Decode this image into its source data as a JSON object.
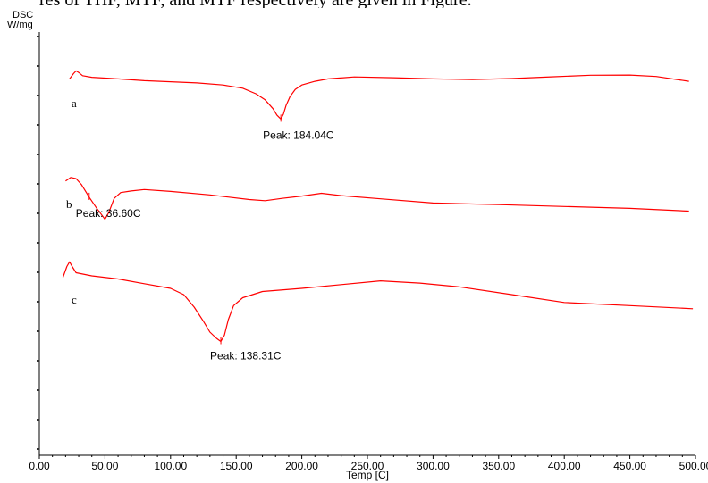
{
  "caption": "res of THF, MTF, and MTF respectively are given in Figure.",
  "chart_data": {
    "type": "line",
    "title": "",
    "ylabel_top": "DSC",
    "ylabel_bottom": "W/mg",
    "xlabel": "Temp [C]",
    "xlim": [
      0,
      500
    ],
    "x_ticks": [
      "0.00",
      "50.00",
      "100.00",
      "150.00",
      "200.00",
      "250.00",
      "300.00",
      "350.00",
      "400.00",
      "450.00",
      "500.00"
    ],
    "line_color": "#ff0000",
    "series": [
      {
        "name": "a",
        "peak_label": "Peak: 184.04C",
        "peak_x": 184.04,
        "points": [
          [
            23,
            0.2
          ],
          [
            26,
            0.53
          ],
          [
            28,
            0.7
          ],
          [
            30,
            0.6
          ],
          [
            33,
            0.4
          ],
          [
            40,
            0.3
          ],
          [
            60,
            0.2
          ],
          [
            80,
            0.09
          ],
          [
            100,
            0.02
          ],
          [
            120,
            -0.05
          ],
          [
            140,
            -0.18
          ],
          [
            155,
            -0.38
          ],
          [
            165,
            -0.72
          ],
          [
            172,
            -1.1
          ],
          [
            178,
            -1.65
          ],
          [
            181,
            -2.05
          ],
          [
            184.04,
            -2.3
          ],
          [
            186,
            -2.0
          ],
          [
            188,
            -1.45
          ],
          [
            191,
            -0.9
          ],
          [
            195,
            -0.45
          ],
          [
            200,
            -0.18
          ],
          [
            210,
            0.05
          ],
          [
            220,
            0.2
          ],
          [
            240,
            0.32
          ],
          [
            270,
            0.27
          ],
          [
            300,
            0.2
          ],
          [
            330,
            0.16
          ],
          [
            360,
            0.22
          ],
          [
            390,
            0.33
          ],
          [
            420,
            0.43
          ],
          [
            450,
            0.44
          ],
          [
            470,
            0.35
          ],
          [
            495,
            0.05
          ]
        ]
      },
      {
        "name": "b",
        "peak_label": "Peak: 36.60C",
        "peak_x": 36.6,
        "points": [
          [
            20,
            1.55
          ],
          [
            24,
            1.7
          ],
          [
            28,
            1.65
          ],
          [
            32,
            1.4
          ],
          [
            38,
            0.85
          ],
          [
            44,
            0.35
          ],
          [
            48,
            0.05
          ],
          [
            50,
            -0.1
          ],
          [
            53,
            0.2
          ],
          [
            57,
            0.8
          ],
          [
            62,
            1.05
          ],
          [
            70,
            1.12
          ],
          [
            80,
            1.18
          ],
          [
            100,
            1.1
          ],
          [
            130,
            0.95
          ],
          [
            160,
            0.75
          ],
          [
            172,
            0.7
          ],
          [
            185,
            0.8
          ],
          [
            200,
            0.9
          ],
          [
            215,
            1.02
          ],
          [
            230,
            0.92
          ],
          [
            260,
            0.78
          ],
          [
            300,
            0.6
          ],
          [
            350,
            0.53
          ],
          [
            400,
            0.45
          ],
          [
            450,
            0.37
          ],
          [
            495,
            0.25
          ]
        ]
      },
      {
        "name": "c",
        "peak_label": "Peak: 138.31C",
        "peak_x": 138.31,
        "points": [
          [
            18,
            0.35
          ],
          [
            21,
            0.7
          ],
          [
            23,
            0.85
          ],
          [
            25,
            0.7
          ],
          [
            28,
            0.5
          ],
          [
            40,
            0.4
          ],
          [
            60,
            0.3
          ],
          [
            80,
            0.15
          ],
          [
            100,
            0.0
          ],
          [
            110,
            -0.2
          ],
          [
            118,
            -0.6
          ],
          [
            125,
            -1.05
          ],
          [
            130,
            -1.4
          ],
          [
            135,
            -1.6
          ],
          [
            138.31,
            -1.7
          ],
          [
            141,
            -1.5
          ],
          [
            144,
            -1.0
          ],
          [
            148,
            -0.55
          ],
          [
            155,
            -0.3
          ],
          [
            170,
            -0.1
          ],
          [
            200,
            0.0
          ],
          [
            230,
            0.12
          ],
          [
            260,
            0.24
          ],
          [
            290,
            0.17
          ],
          [
            320,
            0.05
          ],
          [
            360,
            -0.2
          ],
          [
            400,
            -0.45
          ],
          [
            450,
            -0.55
          ],
          [
            498,
            -0.65
          ]
        ]
      }
    ]
  }
}
